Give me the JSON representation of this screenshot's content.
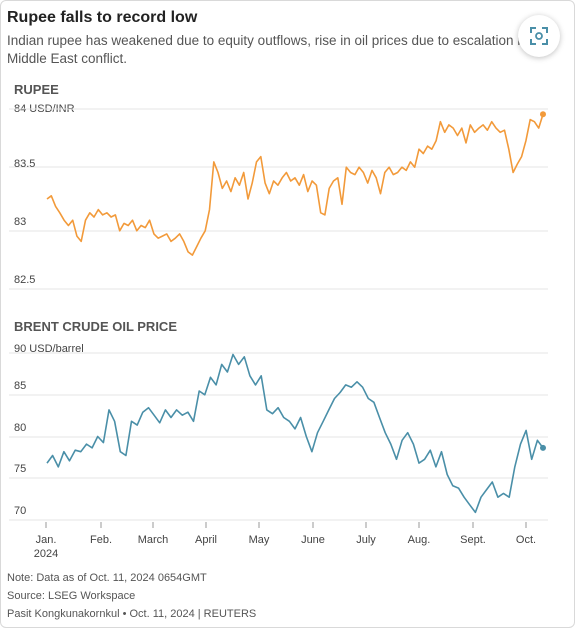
{
  "header": {
    "title": "Rupee falls to record low",
    "subtitle_line1": "Indian rupee has weakened due to equity outflows, rise in oil prices due to escalation in",
    "subtitle_line2": "Middle East conflict."
  },
  "expand_button": {
    "icon": "expand-icon"
  },
  "colors": {
    "rupee": "#f29a3a",
    "brent": "#4a8fa8",
    "grid": "#e6e6e6",
    "axis_text": "#444"
  },
  "chart_data": [
    {
      "type": "line",
      "title": "RUPEE",
      "unit_label": "84 USD/INR",
      "yticks": [
        "83.5",
        "83",
        "82.5"
      ],
      "ylim": [
        82.4,
        84.1
      ],
      "series": [
        {
          "values": [
            [
              0.0,
              83.25
            ],
            [
              0.5,
              83.28
            ],
            [
              1.0,
              83.18
            ],
            [
              1.5,
              83.12
            ],
            [
              2.0,
              83.05
            ],
            [
              2.5,
              83.0
            ],
            [
              3.0,
              83.05
            ],
            [
              3.5,
              82.9
            ],
            [
              4.0,
              82.85
            ],
            [
              4.5,
              83.05
            ],
            [
              5.0,
              83.12
            ],
            [
              5.5,
              83.08
            ],
            [
              6.0,
              83.15
            ],
            [
              6.5,
              83.1
            ],
            [
              7.0,
              83.12
            ],
            [
              7.5,
              83.08
            ],
            [
              8.0,
              83.1
            ],
            [
              8.5,
              82.95
            ],
            [
              9.0,
              83.02
            ],
            [
              9.5,
              83.0
            ],
            [
              10.0,
              83.05
            ],
            [
              10.5,
              82.95
            ],
            [
              11.0,
              83.0
            ],
            [
              11.5,
              82.98
            ],
            [
              12.0,
              83.05
            ],
            [
              12.5,
              82.92
            ],
            [
              13.0,
              82.88
            ],
            [
              13.5,
              82.9
            ],
            [
              14.0,
              82.92
            ],
            [
              14.5,
              82.85
            ],
            [
              15.0,
              82.88
            ],
            [
              15.5,
              82.92
            ],
            [
              16.0,
              82.85
            ],
            [
              16.5,
              82.75
            ],
            [
              17.0,
              82.72
            ],
            [
              17.5,
              82.8
            ],
            [
              18.0,
              82.88
            ],
            [
              18.5,
              82.95
            ],
            [
              19.0,
              83.15
            ],
            [
              19.5,
              83.6
            ],
            [
              20.0,
              83.5
            ],
            [
              20.5,
              83.35
            ],
            [
              21.0,
              83.42
            ],
            [
              21.5,
              83.32
            ],
            [
              22.0,
              83.45
            ],
            [
              22.5,
              83.38
            ],
            [
              23.0,
              83.5
            ],
            [
              23.5,
              83.25
            ],
            [
              24.0,
              83.4
            ],
            [
              24.5,
              83.6
            ],
            [
              25.0,
              83.65
            ],
            [
              25.5,
              83.4
            ],
            [
              26.0,
              83.3
            ],
            [
              26.5,
              83.42
            ],
            [
              27.0,
              83.38
            ],
            [
              27.5,
              83.45
            ],
            [
              28.0,
              83.5
            ],
            [
              28.5,
              83.42
            ],
            [
              29.0,
              83.45
            ],
            [
              29.5,
              83.38
            ],
            [
              30.0,
              83.48
            ],
            [
              30.5,
              83.32
            ],
            [
              31.0,
              83.42
            ],
            [
              31.5,
              83.38
            ],
            [
              32.0,
              83.12
            ],
            [
              32.5,
              83.1
            ],
            [
              33.0,
              83.35
            ],
            [
              33.5,
              83.42
            ],
            [
              34.0,
              83.45
            ],
            [
              34.5,
              83.2
            ],
            [
              35.0,
              83.55
            ],
            [
              35.5,
              83.5
            ],
            [
              36.0,
              83.48
            ],
            [
              36.5,
              83.55
            ],
            [
              37.0,
              83.5
            ],
            [
              37.5,
              83.4
            ],
            [
              38.0,
              83.52
            ],
            [
              38.5,
              83.45
            ],
            [
              39.0,
              83.3
            ],
            [
              39.5,
              83.5
            ],
            [
              40.0,
              83.55
            ],
            [
              40.5,
              83.48
            ],
            [
              41.0,
              83.5
            ],
            [
              41.5,
              83.55
            ],
            [
              42.0,
              83.52
            ],
            [
              42.5,
              83.6
            ],
            [
              43.0,
              83.55
            ],
            [
              43.5,
              83.72
            ],
            [
              44.0,
              83.68
            ],
            [
              44.5,
              83.75
            ],
            [
              45.0,
              83.72
            ],
            [
              45.5,
              83.8
            ],
            [
              46.0,
              83.98
            ],
            [
              46.5,
              83.88
            ],
            [
              47.0,
              83.95
            ],
            [
              47.5,
              83.92
            ],
            [
              48.0,
              83.85
            ],
            [
              48.5,
              83.92
            ],
            [
              49.0,
              83.78
            ],
            [
              49.5,
              83.95
            ],
            [
              50.0,
              83.88
            ],
            [
              50.5,
              83.92
            ],
            [
              51.0,
              83.95
            ],
            [
              51.5,
              83.9
            ],
            [
              52.0,
              83.98
            ],
            [
              52.5,
              83.92
            ],
            [
              53.0,
              83.88
            ],
            [
              53.5,
              83.9
            ],
            [
              54.0,
              83.72
            ],
            [
              54.5,
              83.5
            ],
            [
              55.0,
              83.58
            ],
            [
              55.5,
              83.65
            ],
            [
              56.0,
              83.8
            ],
            [
              56.5,
              84.0
            ],
            [
              57.0,
              83.98
            ],
            [
              57.5,
              83.92
            ],
            [
              58.0,
              84.05
            ]
          ]
        }
      ]
    },
    {
      "type": "line",
      "title": "BRENT CRUDE OIL PRICE",
      "unit_label": "90 USD/barrel",
      "yticks": [
        "85",
        "80",
        "75",
        "70"
      ],
      "ylim": [
        69,
        91
      ],
      "xticks": [
        "Jan.",
        "Feb.",
        "March",
        "April",
        "May",
        "June",
        "July",
        "Aug.",
        "Sept.",
        "Oct."
      ],
      "xtick_sublabel": "2024",
      "series": [
        {
          "values": [
            [
              0.0,
              76.5
            ],
            [
              0.5,
              77.5
            ],
            [
              1.0,
              76.0
            ],
            [
              1.5,
              78.0
            ],
            [
              2.0,
              76.8
            ],
            [
              2.5,
              78.2
            ],
            [
              3.0,
              78.0
            ],
            [
              3.5,
              79.0
            ],
            [
              4.0,
              78.5
            ],
            [
              4.5,
              80.0
            ],
            [
              5.0,
              79.2
            ],
            [
              5.5,
              83.5
            ],
            [
              6.0,
              82.0
            ],
            [
              6.5,
              78.0
            ],
            [
              7.0,
              77.5
            ],
            [
              7.5,
              82.0
            ],
            [
              8.0,
              81.5
            ],
            [
              8.5,
              83.2
            ],
            [
              9.0,
              83.8
            ],
            [
              9.5,
              82.8
            ],
            [
              10.0,
              81.8
            ],
            [
              10.5,
              83.5
            ],
            [
              11.0,
              82.5
            ],
            [
              11.5,
              83.5
            ],
            [
              12.0,
              82.8
            ],
            [
              12.5,
              83.2
            ],
            [
              13.0,
              82.0
            ],
            [
              13.5,
              86.0
            ],
            [
              14.0,
              85.5
            ],
            [
              14.5,
              87.8
            ],
            [
              15.0,
              86.8
            ],
            [
              15.5,
              89.5
            ],
            [
              16.0,
              88.5
            ],
            [
              16.5,
              90.8
            ],
            [
              17.0,
              89.5
            ],
            [
              17.5,
              90.5
            ],
            [
              18.0,
              88.0
            ],
            [
              18.5,
              86.8
            ],
            [
              19.0,
              88.0
            ],
            [
              19.5,
              83.5
            ],
            [
              20.0,
              83.0
            ],
            [
              20.5,
              83.8
            ],
            [
              21.0,
              82.5
            ],
            [
              21.5,
              82.0
            ],
            [
              22.0,
              81.0
            ],
            [
              22.5,
              82.5
            ],
            [
              23.0,
              80.0
            ],
            [
              23.5,
              78.0
            ],
            [
              24.0,
              80.5
            ],
            [
              24.5,
              82.0
            ],
            [
              25.0,
              83.5
            ],
            [
              25.5,
              85.0
            ],
            [
              26.0,
              85.8
            ],
            [
              26.5,
              86.8
            ],
            [
              27.0,
              86.5
            ],
            [
              27.5,
              87.2
            ],
            [
              28.0,
              86.5
            ],
            [
              28.5,
              85.0
            ],
            [
              29.0,
              84.5
            ],
            [
              29.5,
              82.5
            ],
            [
              30.0,
              80.5
            ],
            [
              30.5,
              79.0
            ],
            [
              31.0,
              77.0
            ],
            [
              31.5,
              79.5
            ],
            [
              32.0,
              80.5
            ],
            [
              32.5,
              79.0
            ],
            [
              33.0,
              76.5
            ],
            [
              33.5,
              77.0
            ],
            [
              34.0,
              78.2
            ],
            [
              34.5,
              76.0
            ],
            [
              35.0,
              78.0
            ],
            [
              35.5,
              75.0
            ],
            [
              36.0,
              73.5
            ],
            [
              36.5,
              73.2
            ],
            [
              37.0,
              72.0
            ],
            [
              37.5,
              71.0
            ],
            [
              38.0,
              70.0
            ],
            [
              38.5,
              72.0
            ],
            [
              39.0,
              73.0
            ],
            [
              39.5,
              74.0
            ],
            [
              40.0,
              72.0
            ],
            [
              40.5,
              72.5
            ],
            [
              41.0,
              72.0
            ],
            [
              41.5,
              76.0
            ],
            [
              42.0,
              79.0
            ],
            [
              42.5,
              80.8
            ],
            [
              43.0,
              77.0
            ],
            [
              43.5,
              79.5
            ],
            [
              44.0,
              78.5
            ]
          ]
        }
      ]
    }
  ],
  "notes": {
    "note": "Note: Data as of Oct. 11, 2024 0654GMT",
    "source": "Source: LSEG Workspace",
    "credit": "Pasit Kongkunakornkul • Oct. 11, 2024 | REUTERS"
  }
}
